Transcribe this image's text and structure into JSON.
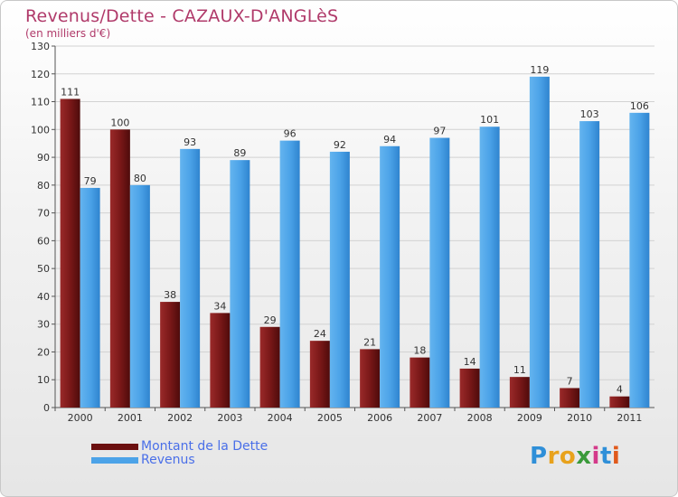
{
  "header": {
    "title": "Revenus/Dette - CAZAUX-D'ANGLèS",
    "subtitle": "(en milliers d'€)"
  },
  "legend": {
    "debt_label": "Montant de la Dette",
    "revenue_label": "Revenus"
  },
  "brand": {
    "text": "Proxiti",
    "letter_colors": [
      "#2f8fd8",
      "#e8a21c",
      "#e8a21c",
      "#3a9a3a",
      "#d43a8a",
      "#2f8fd8",
      "#e05a1c"
    ]
  },
  "colors": {
    "debt": "#7a1e1e",
    "revenue": "#4ca3e8",
    "title": "#b03a6a",
    "legend_text": "#4a6fe8"
  },
  "chart_data": {
    "type": "bar",
    "title": "Revenus/Dette - CAZAUX-D'ANGLèS",
    "subtitle": "(en milliers d'€)",
    "categories": [
      "2000",
      "2001",
      "2002",
      "2003",
      "2004",
      "2005",
      "2006",
      "2007",
      "2008",
      "2009",
      "2010",
      "2011"
    ],
    "series": [
      {
        "name": "Montant de la Dette",
        "values": [
          111,
          100,
          38,
          34,
          29,
          24,
          21,
          18,
          14,
          11,
          7,
          4
        ]
      },
      {
        "name": "Revenus",
        "values": [
          79,
          80,
          93,
          89,
          96,
          92,
          94,
          97,
          101,
          119,
          103,
          106
        ]
      }
    ],
    "ylim": [
      0,
      130
    ],
    "yticks": [
      0,
      10,
      20,
      30,
      40,
      50,
      60,
      70,
      80,
      90,
      100,
      110,
      120,
      130
    ],
    "grid": true,
    "legend_position": "bottom-left"
  }
}
